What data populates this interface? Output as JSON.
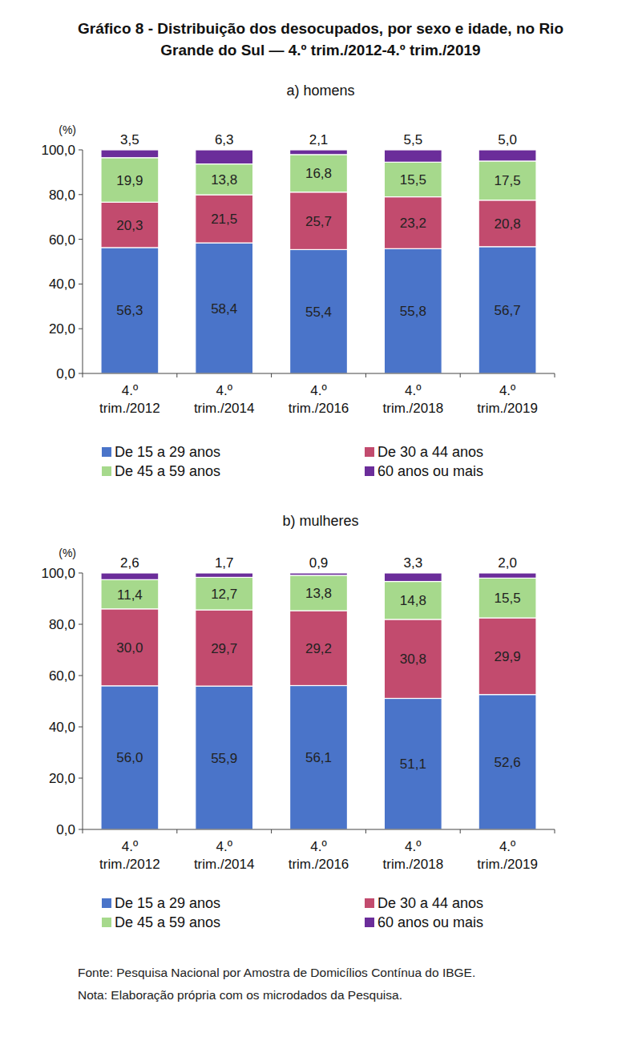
{
  "title": "Gráfico 8 - Distribuição dos desocupados, por sexo e idade, no Rio Grande do Sul — 4.º trim./2012-4.º trim./2019",
  "source": "Fonte: Pesquisa Nacional por Amostra de Domicílios Contínua do IBGE.",
  "note": "Nota: Elaboração própria com os microdados da Pesquisa.",
  "chart_data": [
    {
      "type": "bar",
      "title": "a) homens",
      "stacked": true,
      "data_labels": true,
      "grid": false,
      "legend": "bottom",
      "ylabel": "(%)",
      "categories": [
        "4.º trim./2012",
        "4.º trim./2014",
        "4.º trim./2016",
        "4.º trim./2018",
        "4.º trim./2019"
      ],
      "ylim": [
        0,
        100
      ],
      "yticks": [
        {
          "value": 0,
          "label": "0,0"
        },
        {
          "value": 20,
          "label": "20,0"
        },
        {
          "value": 40,
          "label": "40,0"
        },
        {
          "value": 60,
          "label": "60,0"
        },
        {
          "value": 80,
          "label": "80,0"
        },
        {
          "value": 100,
          "label": "100,0"
        }
      ],
      "series": [
        {
          "name": "De 15 a 29 anos",
          "color": "#4a74c9",
          "values": [
            56.3,
            58.4,
            55.4,
            55.8,
            56.7
          ],
          "value_labels": [
            "56,3",
            "58,4",
            "55,4",
            "55,8",
            "56,7"
          ]
        },
        {
          "name": "De 30 a 44 anos",
          "color": "#c24b6e",
          "values": [
            20.3,
            21.5,
            25.7,
            23.2,
            20.8
          ],
          "value_labels": [
            "20,3",
            "21,5",
            "25,7",
            "23,2",
            "20,8"
          ]
        },
        {
          "name": "De 45 a 59 anos",
          "color": "#a6d98c",
          "values": [
            19.9,
            13.8,
            16.8,
            15.5,
            17.5
          ],
          "value_labels": [
            "19,9",
            "13,8",
            "16,8",
            "15,5",
            "17,5"
          ]
        },
        {
          "name": "60 anos ou mais",
          "color": "#6b2d9a",
          "values": [
            3.5,
            6.3,
            2.1,
            5.5,
            5.0
          ],
          "value_labels": [
            "3,5",
            "6,3",
            "2,1",
            "5,5",
            "5,0"
          ]
        }
      ]
    },
    {
      "type": "bar",
      "title": "b) mulheres",
      "stacked": true,
      "data_labels": true,
      "grid": false,
      "legend": "bottom",
      "ylabel": "(%)",
      "categories": [
        "4.º trim./2012",
        "4.º trim./2014",
        "4.º trim./2016",
        "4.º trim./2018",
        "4.º trim./2019"
      ],
      "ylim": [
        0,
        100
      ],
      "yticks": [
        {
          "value": 0,
          "label": "0,0"
        },
        {
          "value": 20,
          "label": "20,0"
        },
        {
          "value": 40,
          "label": "40,0"
        },
        {
          "value": 60,
          "label": "60,0"
        },
        {
          "value": 80,
          "label": "80,0"
        },
        {
          "value": 100,
          "label": "100,0"
        }
      ],
      "series": [
        {
          "name": "De 15 a 29 anos",
          "color": "#4a74c9",
          "values": [
            56.0,
            55.9,
            56.1,
            51.1,
            52.6
          ],
          "value_labels": [
            "56,0",
            "55,9",
            "56,1",
            "51,1",
            "52,6"
          ]
        },
        {
          "name": "De 30 a 44 anos",
          "color": "#c24b6e",
          "values": [
            30.0,
            29.7,
            29.2,
            30.8,
            29.9
          ],
          "value_labels": [
            "30,0",
            "29,7",
            "29,2",
            "30,8",
            "29,9"
          ]
        },
        {
          "name": "De 45 a 59 anos",
          "color": "#a6d98c",
          "values": [
            11.4,
            12.7,
            13.8,
            14.8,
            15.5
          ],
          "value_labels": [
            "11,4",
            "12,7",
            "13,8",
            "14,8",
            "15,5"
          ]
        },
        {
          "name": "60 anos ou mais",
          "color": "#6b2d9a",
          "values": [
            2.6,
            1.7,
            0.9,
            3.3,
            2.0
          ],
          "value_labels": [
            "2,6",
            "1,7",
            "0,9",
            "3,3",
            "2,0"
          ]
        }
      ]
    }
  ]
}
